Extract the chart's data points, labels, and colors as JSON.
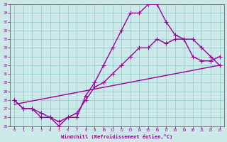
{
  "xlabel": "Windchill (Refroidissement éolien,°C)",
  "background_color": "#cce8e8",
  "line_color": "#990099",
  "xlim": [
    -0.5,
    23.5
  ],
  "ylim": [
    25,
    39
  ],
  "yticks": [
    25,
    26,
    27,
    28,
    29,
    30,
    31,
    32,
    33,
    34,
    35,
    36,
    37,
    38,
    39
  ],
  "xticks": [
    0,
    1,
    2,
    3,
    4,
    5,
    6,
    7,
    8,
    9,
    10,
    11,
    12,
    13,
    14,
    15,
    16,
    17,
    18,
    19,
    20,
    21,
    22,
    23
  ],
  "curve1_x": [
    0,
    1,
    2,
    3,
    4,
    5,
    6,
    7,
    8,
    9,
    10,
    11,
    12,
    13,
    14,
    15,
    16,
    17,
    18,
    19,
    20,
    21,
    22,
    23
  ],
  "curve1_y": [
    28,
    27,
    27,
    26,
    26,
    25.5,
    26,
    26,
    28.5,
    30,
    32,
    34,
    36,
    38,
    38,
    39,
    39,
    37,
    35.5,
    35,
    33,
    32.5,
    32.5,
    33
  ],
  "curve2_x": [
    0,
    1,
    2,
    3,
    4,
    5,
    6,
    7,
    8,
    9,
    10,
    11,
    12,
    13,
    14,
    15,
    16,
    17,
    18,
    19,
    20,
    21,
    22,
    23
  ],
  "curve2_y": [
    28,
    27,
    27,
    26.5,
    26,
    25,
    26,
    26.5,
    28,
    29.5,
    30,
    31,
    32,
    33,
    34,
    34,
    35,
    34.5,
    35,
    35,
    35,
    34,
    33,
    32
  ],
  "curve3_x": [
    0,
    23
  ],
  "curve3_y": [
    27.5,
    32
  ],
  "linewidth": 1.0,
  "markersize": 4
}
